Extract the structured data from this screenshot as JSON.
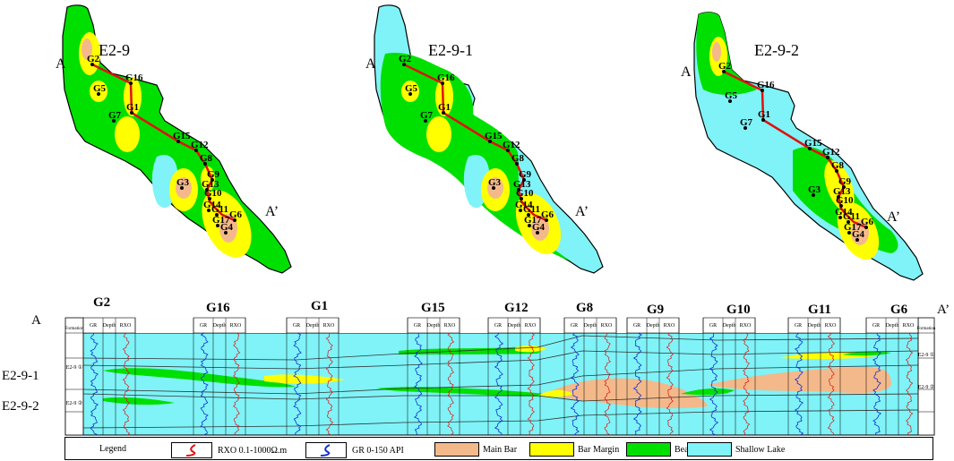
{
  "colors": {
    "main_bar": "#F4B98A",
    "bar_margin": "#FFFF00",
    "beach": "#00E000",
    "shallow_lake": "#7FF3F7",
    "well_line": "#E01010"
  },
  "maps": [
    {
      "title": "E2-9",
      "start_label": "A",
      "end_label": "A’"
    },
    {
      "title": "E2-9-1",
      "start_label": "A",
      "end_label": "A’"
    },
    {
      "title": "E2-9-2",
      "start_label": "A",
      "end_label": "A’"
    }
  ],
  "map_wells": [
    "G2",
    "G5",
    "G16",
    "G7",
    "G1",
    "G15",
    "G12",
    "G8",
    "G9",
    "G13",
    "G3",
    "G10",
    "G14",
    "G11",
    "G17",
    "G6",
    "G4"
  ],
  "section": {
    "start_label": "A",
    "end_label": "A’",
    "wells": [
      "G2",
      "G16",
      "G1",
      "G15",
      "G12",
      "G8",
      "G9",
      "G10",
      "G11",
      "G6"
    ],
    "units": [
      "E2-9-1",
      "E2-9-2"
    ],
    "formation_header": "Formation",
    "log_headers": [
      "GR",
      "Depth",
      "RXO"
    ],
    "left_unit_tags": [
      "E2-9 ①",
      "E2-9 ②"
    ],
    "right_unit_tags": [
      "E2-9 ①",
      "E2-9 ②"
    ]
  },
  "legend": {
    "title": "Legend",
    "rxo": "RXO 0.1-1000Ω.m",
    "gr": "GR 0-150 API",
    "main_bar": "Main Bar",
    "bar_margin": "Bar Margin",
    "beach": "Beach",
    "shallow_lake": "Shallow Lake"
  }
}
